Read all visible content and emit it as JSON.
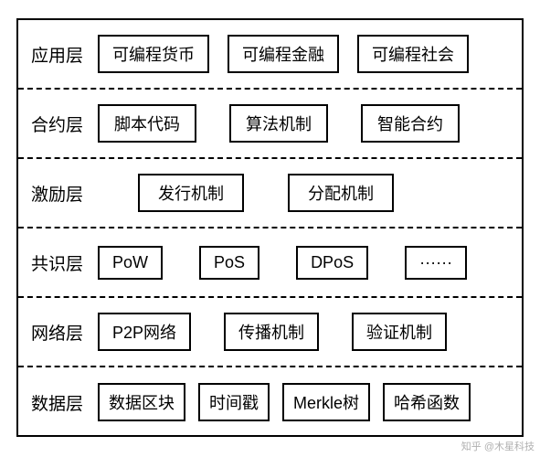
{
  "diagram": {
    "type": "layered-architecture",
    "border_color": "#000000",
    "background_color": "#ffffff",
    "text_color": "#000000",
    "divider_style": "dashed",
    "label_fontsize": 19,
    "box_fontsize": 18,
    "layers": [
      {
        "label": "应用层",
        "items": [
          "可编程货币",
          "可编程金融",
          "可编程社会"
        ],
        "items_gap": 20,
        "box_padding_x": 14
      },
      {
        "label": "合约层",
        "items": [
          "脚本代码",
          "算法机制",
          "智能合约"
        ],
        "items_gap": 36,
        "box_padding_x": 16
      },
      {
        "label": "激励层",
        "items": [
          "发行机制",
          "分配机制"
        ],
        "items_gap": 48,
        "lead_gap": 44,
        "box_padding_x": 20
      },
      {
        "label": "共识层",
        "items": [
          "PoW",
          "PoS",
          "DPoS",
          "······"
        ],
        "items_gap": 40,
        "box_padding_x": 14
      },
      {
        "label": "网络层",
        "items": [
          "P2P网络",
          "传播机制",
          "验证机制"
        ],
        "items_gap": 36,
        "box_padding_x": 14
      },
      {
        "label": "数据层",
        "items": [
          "数据区块",
          "时间戳",
          "Merkle树",
          "哈希函数"
        ],
        "items_gap": 14,
        "box_padding_x": 10
      }
    ]
  },
  "watermark": "知乎 @木星科技"
}
